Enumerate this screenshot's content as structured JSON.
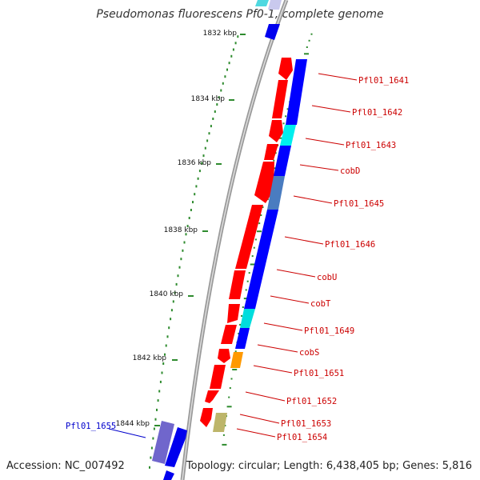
{
  "title": "Pseudomonas fluorescens Pf0-1, complete genome",
  "accession": "Accession: NC_007492",
  "summary": "Topology: circular; Length: 6,438,405 bp; Genes: 5,816",
  "ticks": [
    {
      "label": "1832 kbp"
    },
    {
      "label": "1834 kbp"
    },
    {
      "label": "1836 kbp"
    },
    {
      "label": "1838 kbp"
    },
    {
      "label": "1840 kbp"
    },
    {
      "label": "1842 kbp"
    },
    {
      "label": "1844 kbp"
    }
  ],
  "gene_labels": [
    {
      "text": "Pfl01_1641",
      "color": "#cc0000"
    },
    {
      "text": "Pfl01_1642",
      "color": "#cc0000"
    },
    {
      "text": "Pfl01_1643",
      "color": "#cc0000"
    },
    {
      "text": "cobD",
      "color": "#cc0000"
    },
    {
      "text": "Pfl01_1645",
      "color": "#cc0000"
    },
    {
      "text": "Pfl01_1646",
      "color": "#cc0000"
    },
    {
      "text": "cobU",
      "color": "#cc0000"
    },
    {
      "text": "cobT",
      "color": "#cc0000"
    },
    {
      "text": "Pfl01_1649",
      "color": "#cc0000"
    },
    {
      "text": "cobS",
      "color": "#cc0000"
    },
    {
      "text": "Pfl01_1651",
      "color": "#cc0000"
    },
    {
      "text": "Pfl01_1652",
      "color": "#cc0000"
    },
    {
      "text": "Pfl01_1653",
      "color": "#cc0000"
    },
    {
      "text": "Pfl01_1654",
      "color": "#cc0000"
    },
    {
      "text": "Pfl01_1655",
      "color": "#0000cc"
    }
  ],
  "colors": {
    "cds": "#ff0000",
    "strand": "#0000ff",
    "cyan": "#00e5ee",
    "steel": "#4f7fb8",
    "orange": "#ff9900",
    "khaki": "#c8c07a",
    "slate": "#7a70d8",
    "backbone": "#888888",
    "tick": "#2e8b2e"
  }
}
